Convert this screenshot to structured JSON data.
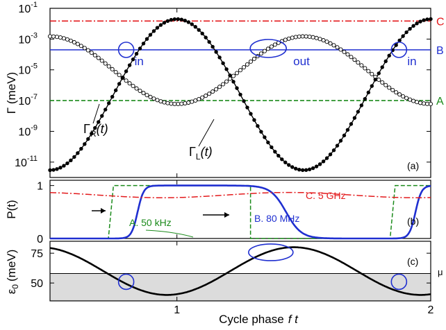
{
  "chart_data": [
    {
      "panel": "(a)",
      "type": "line",
      "ylabel": "Γ (meV)",
      "yscale": "log",
      "ylim": [
        1e-12,
        0.1
      ],
      "xlim": [
        0.5,
        2.0
      ],
      "ytick_labels": [
        {
          "base": "10",
          "exp": "-1",
          "value": 0.1
        },
        {
          "base": "10",
          "exp": "-3",
          "value": 0.001
        },
        {
          "base": "10",
          "exp": "-5",
          "value": 1e-05
        },
        {
          "base": "10",
          "exp": "-7",
          "value": 1e-07
        },
        {
          "base": "10",
          "exp": "-9",
          "value": 1e-09
        },
        {
          "base": "10",
          "exp": "-11",
          "value": 1e-11
        }
      ],
      "hlines": [
        {
          "label": "C",
          "y": 0.015,
          "color": "#e31a1c",
          "style": "dashdot"
        },
        {
          "label": "B",
          "y": 0.0002,
          "color": "#1f2fd0",
          "style": "solid"
        },
        {
          "label": "A",
          "y": 1e-07,
          "color": "#1a8a1a",
          "style": "dashed"
        }
      ],
      "series": [
        {
          "name_main": "Γ",
          "name_sub": "L",
          "name_arg": "(t)",
          "marker": "filled",
          "ymax": 0.02,
          "ymin": 3e-12
        },
        {
          "name_main": "Γ",
          "name_sub": "R",
          "name_arg": "(t)",
          "marker": "open",
          "ymax": 0.0015,
          "ymin": 6e-08
        }
      ],
      "annotations": [
        "in",
        "out",
        "in"
      ],
      "panel_label": "(a)"
    },
    {
      "panel": "(b)",
      "type": "line",
      "ylabel_main": "P",
      "ylabel_arg": "(t)",
      "ylim": [
        0,
        1.1
      ],
      "yticks": [
        "0",
        "1"
      ],
      "series": [
        {
          "name": "A. 50 kHz",
          "color": "#1a8a1a",
          "style": "dashed"
        },
        {
          "name": "B. 80 MHz",
          "color": "#1f2fd0",
          "style": "solid"
        },
        {
          "name": "C. 5 GHz",
          "color": "#e31a1c",
          "style": "dashdot"
        }
      ],
      "panel_label": "(b)"
    },
    {
      "panel": "(c)",
      "type": "line",
      "ylabel_main": "ε",
      "ylabel_sub": "0",
      "ylabel_unit": "(meV)",
      "ylim": [
        35,
        85
      ],
      "yticks": [
        "50",
        "75"
      ],
      "mu_label": "μ",
      "mu_value": 58,
      "curve": {
        "mean": 60,
        "amplitude": 20
      },
      "panel_label": "(c)"
    }
  ],
  "xaxis": {
    "label_text": "Cycle phase",
    "label_var": "f t",
    "tick_labels": [
      "1",
      "2"
    ],
    "tick_values": [
      1,
      2
    ]
  },
  "colors": {
    "red": "#e31a1c",
    "blue": "#1f2fd0",
    "green": "#1a8a1a",
    "black": "#000000",
    "shade": "#dcdcdc"
  }
}
